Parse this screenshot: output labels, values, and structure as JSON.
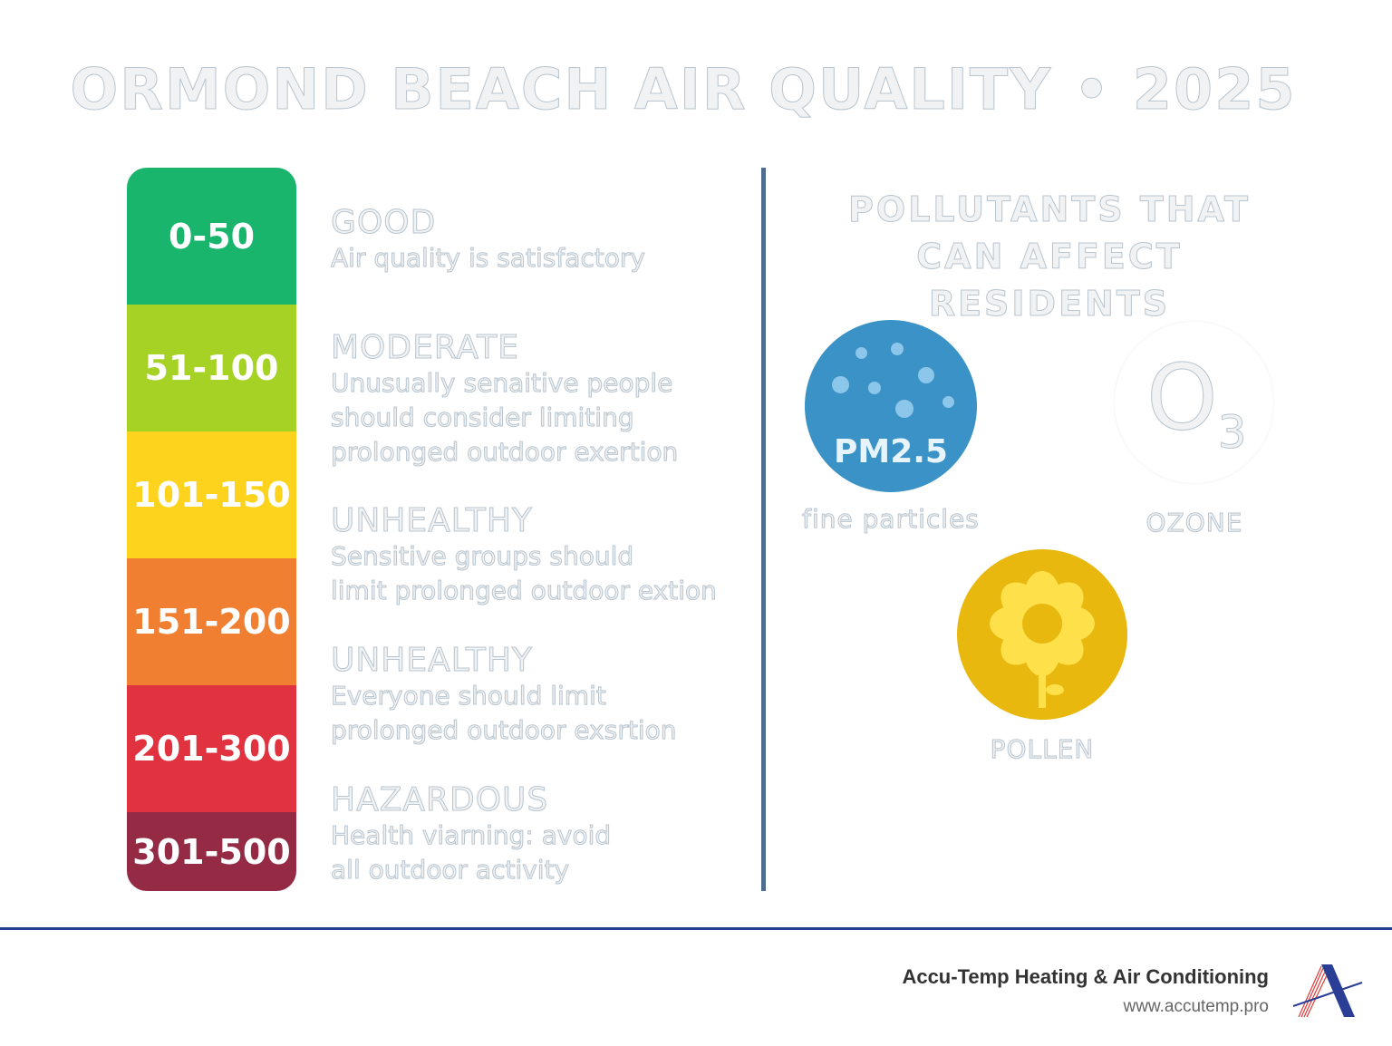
{
  "title": "ORMOND BEACH AIR QUALITY • 2025",
  "aqi_levels": [
    {
      "range": "0-50",
      "level": "GOOD",
      "description": [
        "Air quality is satisfactory"
      ],
      "color": "#19b56c"
    },
    {
      "range": "51-100",
      "level": "MODERATE",
      "description": [
        "Unusually senaitive people",
        "should consider limiting",
        "prolonged outdoor exertion"
      ],
      "color": "#a6d125"
    },
    {
      "range": "101-150",
      "level": "UNHEALTHY",
      "description": [
        "Sensitive groups should",
        "limit prolonged outdoor extion"
      ],
      "color": "#fed31d"
    },
    {
      "range": "151-200",
      "level": "UNHEALTHY",
      "description": [
        "Everyone should limit",
        "prolonged outdoor exsrtion"
      ],
      "color": "#f07f32"
    },
    {
      "range": "201-300",
      "level": "HAZARDOUS",
      "description": [
        "Health viarning: avoid",
        "all outdoor activity"
      ],
      "color": "#e1323f"
    },
    {
      "range": "301-500",
      "color": "#952a45"
    }
  ],
  "pollutants": {
    "heading": [
      "POLLUTANTS THAT",
      "CAN AFFECT RESIDENTS"
    ],
    "pm": {
      "label": "PM2.5",
      "caption": "fine particles",
      "color": "#3a92c6",
      "icon": "particles-icon"
    },
    "ozone": {
      "symbol": "O",
      "subscript": "3",
      "caption": "OZONE",
      "icon": "ozone-icon"
    },
    "pollen": {
      "caption": "POLLEN",
      "color": "#e8b80f",
      "icon": "flower-icon"
    }
  },
  "footer": {
    "company": "Accu-Temp Heating & Air Conditioning",
    "url": "www.accutemp.pro",
    "accent": "#23408e"
  }
}
